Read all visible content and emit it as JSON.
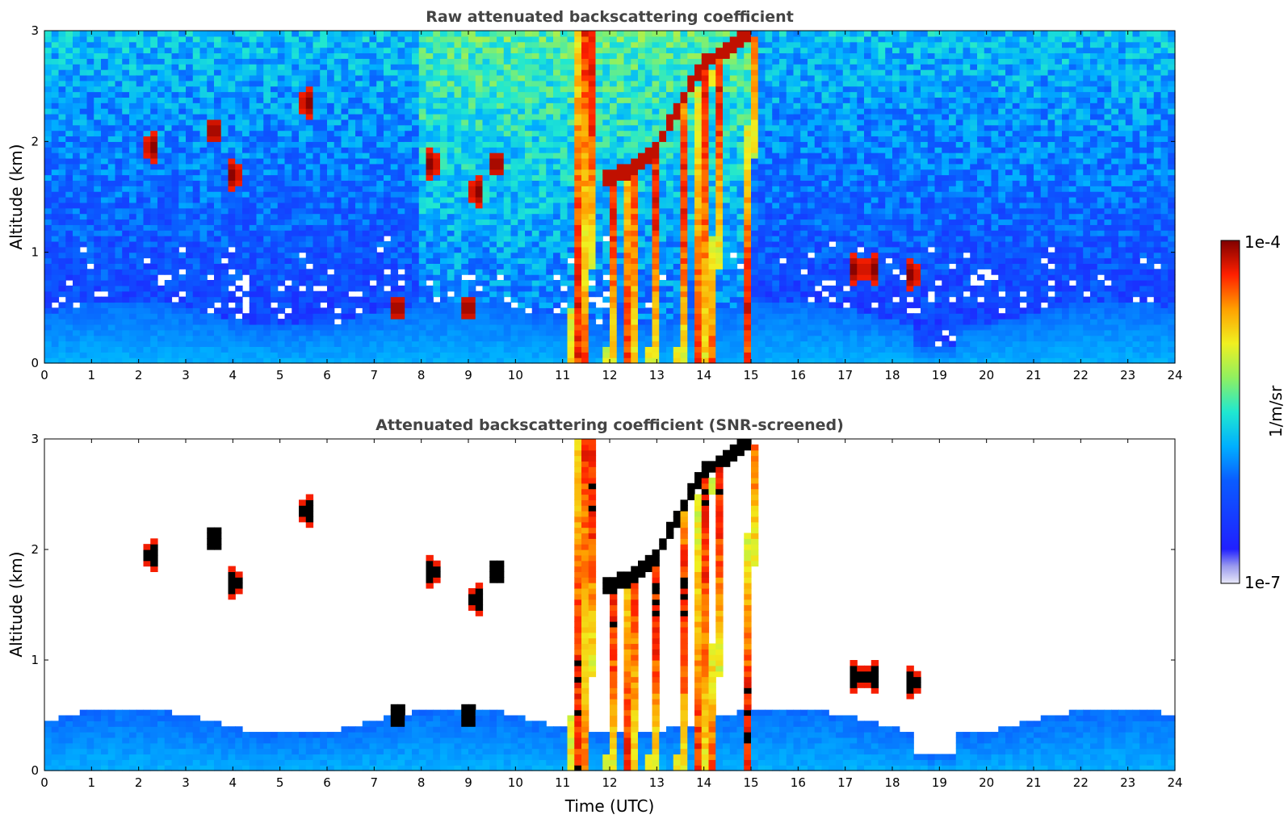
{
  "chart_data": [
    {
      "type": "heatmap",
      "title": "Raw attenuated backscattering coefficient",
      "xlabel": "",
      "ylabel": "Altitude (km)",
      "xlim": [
        0,
        24
      ],
      "ylim": [
        0,
        3
      ],
      "x_ticks": [
        "0",
        "1",
        "2",
        "3",
        "4",
        "5",
        "6",
        "7",
        "8",
        "9",
        "10",
        "11",
        "12",
        "13",
        "14",
        "15",
        "16",
        "17",
        "18",
        "19",
        "20",
        "21",
        "22",
        "23",
        "24"
      ],
      "y_ticks": [
        "0",
        "1",
        "2",
        "3"
      ],
      "screened": false
    },
    {
      "type": "heatmap",
      "title": "Attenuated backscattering coefficient (SNR-screened)",
      "xlabel": "Time (UTC)",
      "ylabel": "Altitude (km)",
      "xlim": [
        0,
        24
      ],
      "ylim": [
        0,
        3
      ],
      "x_ticks": [
        "0",
        "1",
        "2",
        "3",
        "4",
        "5",
        "6",
        "7",
        "8",
        "9",
        "10",
        "11",
        "12",
        "13",
        "14",
        "15",
        "16",
        "17",
        "18",
        "19",
        "20",
        "21",
        "22",
        "23",
        "24"
      ],
      "y_ticks": [
        "0",
        "1",
        "2",
        "3"
      ],
      "screened": true
    }
  ],
  "colorbar": {
    "label": "1/m/sr",
    "max_label": "1e-4",
    "min_label": "1e-7",
    "range": [
      1e-07,
      0.0001
    ],
    "scale": "log",
    "colormap": "jet"
  },
  "features": {
    "boundary_layer_top_km": 0.45,
    "rain_shafts_utc": [
      11.3,
      11.5,
      12.0,
      12.4,
      12.9,
      13.5,
      13.9,
      14.2,
      14.9
    ],
    "cloud_layer": [
      [
        11.8,
        1.65
      ],
      [
        12.5,
        1.75
      ],
      [
        13.0,
        1.95
      ],
      [
        13.5,
        2.35
      ],
      [
        14.0,
        2.7
      ],
      [
        14.5,
        2.85
      ],
      [
        15.0,
        3.0
      ]
    ],
    "small_clouds": [
      [
        2.3,
        1.95
      ],
      [
        3.6,
        2.1
      ],
      [
        4.0,
        1.7
      ],
      [
        5.6,
        2.35
      ],
      [
        8.2,
        1.8
      ],
      [
        9.2,
        1.55
      ],
      [
        9.6,
        1.8
      ],
      [
        17.2,
        0.85
      ],
      [
        17.6,
        0.85
      ],
      [
        18.4,
        0.8
      ],
      [
        7.5,
        0.5
      ],
      [
        9.0,
        0.5
      ]
    ]
  }
}
